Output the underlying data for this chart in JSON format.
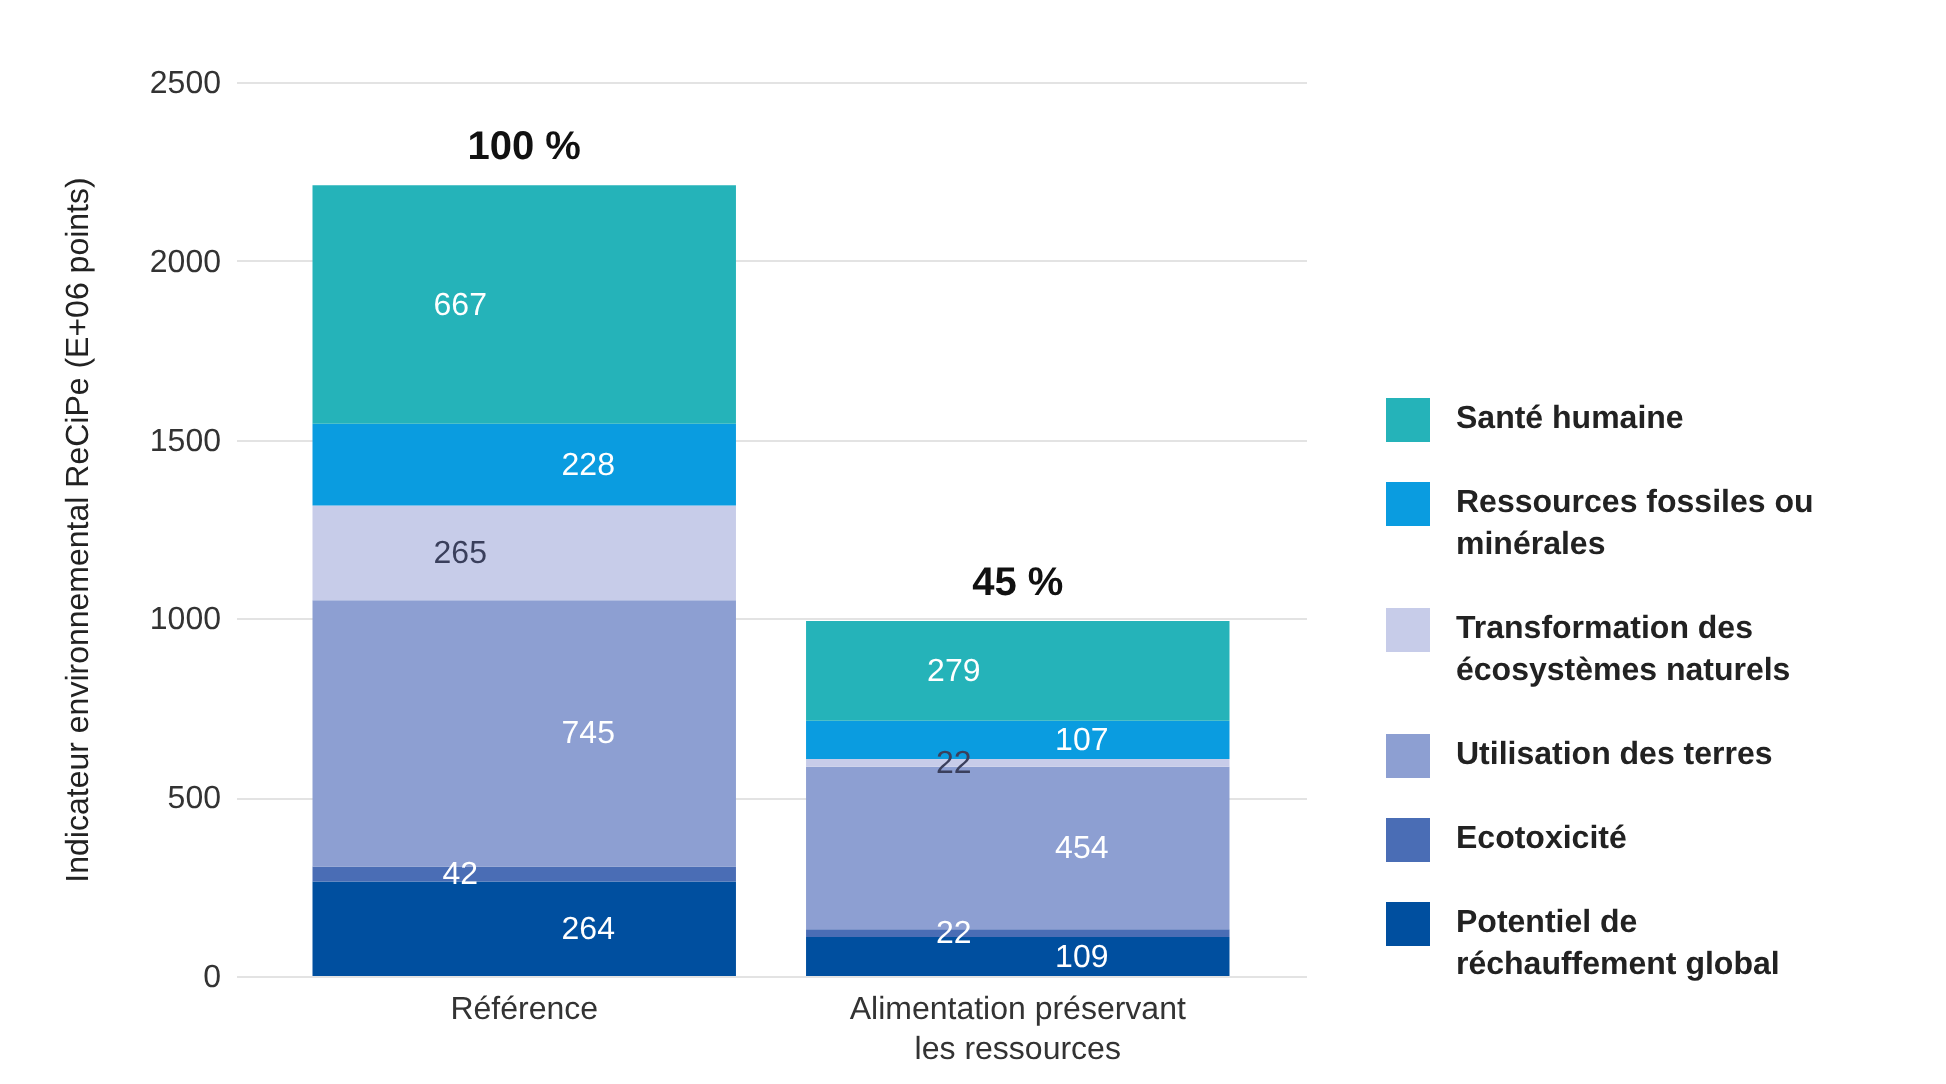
{
  "chart_data": {
    "type": "bar",
    "ylabel": "Indicateur environnemental ReCiPe (E+06 points)",
    "categories": [
      "Référence",
      "Alimentation préservant les ressources"
    ],
    "stacked": true,
    "series": [
      {
        "name": "Potentiel de réchauffement global",
        "color": "#004f9f",
        "values": [
          264,
          109
        ]
      },
      {
        "name": "Ecotoxicité",
        "color": "#4a6db5",
        "values": [
          42,
          22
        ]
      },
      {
        "name": "Utilisation des terres",
        "color": "#8d9fd2",
        "values": [
          745,
          454
        ]
      },
      {
        "name": "Transformation des écosystèmes naturels",
        "color": "#c7cce9",
        "values": [
          265,
          22
        ]
      },
      {
        "name": "Ressources fossiles ou minérales",
        "color": "#0a9ce0",
        "values": [
          228,
          107
        ]
      },
      {
        "name": "Santé humaine",
        "color": "#25b3b9",
        "values": [
          667,
          279
        ]
      }
    ],
    "ylim": [
      0,
      2500
    ],
    "yticks": [
      0,
      500,
      1000,
      1500,
      2000,
      2500
    ],
    "grid": "y",
    "legend": "right",
    "data_labels": true,
    "annotations": [
      {
        "text": "100 %",
        "x": "Référence",
        "y": 2211
      },
      {
        "text": "45 %",
        "x": "Alimentation préservant les ressources",
        "y": 993
      }
    ]
  }
}
